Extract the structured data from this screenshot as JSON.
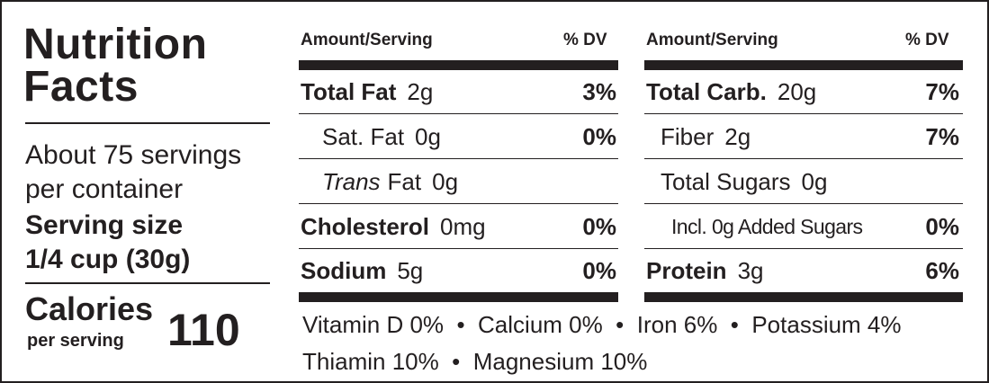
{
  "title_line1": "Nutrition",
  "title_line2": "Facts",
  "servings": {
    "line1": "About 75 servings",
    "line2": "per container"
  },
  "serving_size": {
    "label": "Serving size",
    "value": "1/4 cup (30g)"
  },
  "calories": {
    "label": "Calories",
    "sublabel": "per serving",
    "value": "110"
  },
  "header": {
    "amount": "Amount/Serving",
    "dv": "% DV"
  },
  "left_rows": [
    {
      "name": "Total Fat",
      "amount": "2g",
      "dv": "3%"
    },
    {
      "name": "Sat. Fat",
      "amount": "0g",
      "dv": "0%"
    },
    {
      "name_italic": "Trans",
      "name": "Fat",
      "amount": "0g",
      "dv": ""
    },
    {
      "name": "Cholesterol",
      "amount": "0mg",
      "dv": "0%"
    },
    {
      "name": "Sodium",
      "amount": "5g",
      "dv": "0%"
    }
  ],
  "right_rows": [
    {
      "name": "Total Carb.",
      "amount": "20g",
      "dv": "7%"
    },
    {
      "name": "Fiber",
      "amount": "2g",
      "dv": "7%"
    },
    {
      "name": "Total Sugars",
      "amount": "0g",
      "dv": ""
    },
    {
      "name": "Incl. 0g Added Sugars",
      "amount": "",
      "dv": "0%"
    },
    {
      "name": "Protein",
      "amount": "3g",
      "dv": "6%"
    }
  ],
  "vitamins_line1": "Vitamin D 0%  •  Calcium 0%  •  Iron 6%  •  Potassium 4%",
  "vitamins_line2": "Thiamin 10%  •  Magnesium 10%"
}
